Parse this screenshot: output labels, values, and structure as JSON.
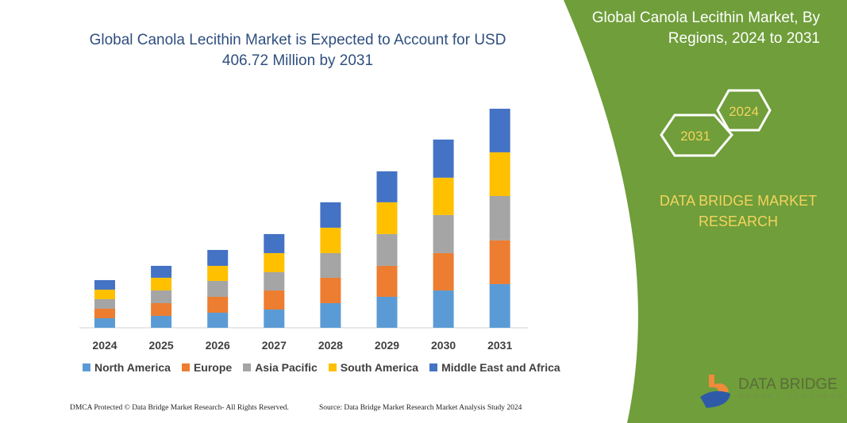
{
  "header": {
    "title": "Global Canola Lecithin Market is Expected to Account for USD 406.72 Million by 2031",
    "title_line1": "Global Canola Lecithin Market is Expected to Account for USD",
    "title_line2": "406.72 Million by 2031"
  },
  "side_panel": {
    "title_line1": "Global Canola Lecithin Market, By",
    "title_line2": "Regions, 2024 to 2031",
    "hex_start": "2024",
    "hex_end": "2031",
    "brand_line1": "DATA BRIDGE MARKET",
    "brand_line2": "RESEARCH",
    "logo_text": "DATA BRIDGE",
    "logo_sub": "MARKET RESEARCH",
    "color": "#6f9e3a"
  },
  "footer": {
    "left": "DMCA Protected © Data Bridge Market Research- All Rights Reserved.",
    "right": "Source: Data Bridge Market Research Market Analysis Study 2024"
  },
  "chart_data": {
    "type": "bar",
    "stacked": true,
    "title": "Global Canola Lecithin Market is Expected to Account for USD 406.72 Million by 2031",
    "xlabel": "",
    "ylabel": "",
    "grid": false,
    "legend_position": "bottom",
    "categories": [
      "2024",
      "2025",
      "2026",
      "2027",
      "2028",
      "2029",
      "2030",
      "2031"
    ],
    "ylim": [
      0,
      406.72
    ],
    "series": [
      {
        "name": "North America",
        "color": "#5b9bd5",
        "values": [
          17.7,
          22.1,
          28.0,
          33.9,
          45.7,
          57.5,
          69.3,
          81.1
        ]
      },
      {
        "name": "Europe",
        "color": "#ed7d31",
        "values": [
          17.7,
          23.6,
          29.5,
          35.4,
          47.2,
          57.5,
          69.3,
          81.1
        ]
      },
      {
        "name": "Asia Pacific",
        "color": "#a5a5a5",
        "values": [
          17.7,
          23.6,
          29.5,
          33.9,
          45.7,
          59.0,
          70.8,
          82.5
        ]
      },
      {
        "name": "South America",
        "color": "#ffc000",
        "values": [
          17.7,
          23.6,
          28.0,
          35.4,
          47.2,
          59.0,
          69.3,
          81.1
        ]
      },
      {
        "name": "Middle East and Africa",
        "color": "#4472c4",
        "values": [
          17.7,
          22.1,
          29.5,
          35.4,
          47.2,
          57.5,
          70.8,
          80.9
        ]
      }
    ]
  }
}
